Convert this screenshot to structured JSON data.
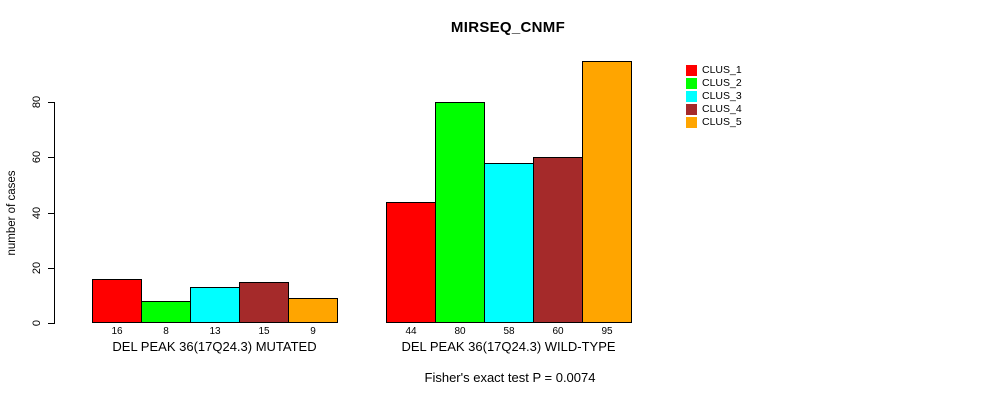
{
  "title": "MIRSEQ_CNMF",
  "footer": {
    "caption": "Fisher's exact test P = 0.0074"
  },
  "chart_data": {
    "type": "bar",
    "title": "MIRSEQ_CNMF",
    "ylabel": "number of cases",
    "xlabel": "",
    "ylim": [
      0,
      80
    ],
    "yticks": [
      0,
      20,
      40,
      60,
      80
    ],
    "grid": false,
    "legend_position": "right-outside",
    "bar_value_labels_shown": true,
    "categories": [
      "DEL PEAK 36(17Q24.3) MUTATED",
      "DEL PEAK 36(17Q24.3) WILD-TYPE"
    ],
    "series": [
      {
        "name": "CLUS_1",
        "color": "#FF0000",
        "values": [
          16,
          44
        ]
      },
      {
        "name": "CLUS_2",
        "color": "#00FF00",
        "values": [
          8,
          80
        ]
      },
      {
        "name": "CLUS_3",
        "color": "#00FFFF",
        "values": [
          13,
          58
        ]
      },
      {
        "name": "CLUS_4",
        "color": "#A52A2A",
        "values": [
          15,
          60
        ]
      },
      {
        "name": "CLUS_5",
        "color": "#FFA500",
        "values": [
          9,
          95
        ]
      }
    ],
    "annotation": "Fisher's exact test P = 0.0074"
  }
}
